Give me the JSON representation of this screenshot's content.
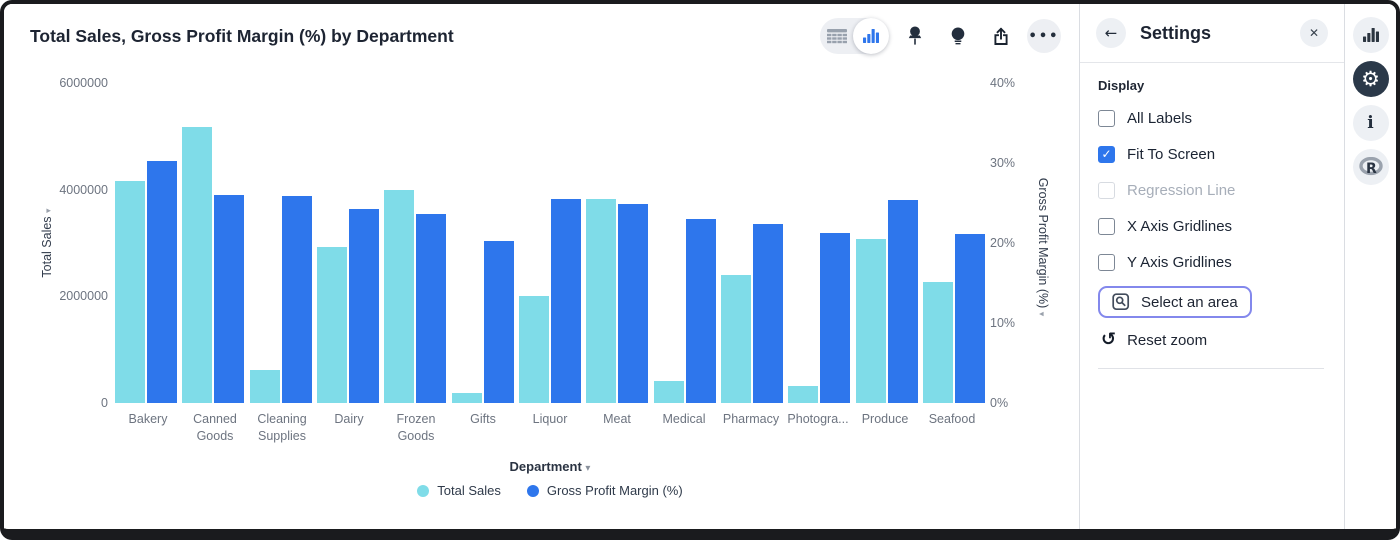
{
  "header": {
    "title": "Total Sales, Gross Profit Margin (%) by Department",
    "toolbar": [
      {
        "name": "table-view-icon",
        "active": false
      },
      {
        "name": "chart-view-icon",
        "active": true
      },
      {
        "name": "pin-icon",
        "active": false
      },
      {
        "name": "lightbulb-icon",
        "active": false
      },
      {
        "name": "share-icon",
        "active": false
      },
      {
        "name": "more-options-icon",
        "active": false
      }
    ]
  },
  "chart_data": {
    "type": "bar",
    "title": "Total Sales, Gross Profit Margin (%) by Department",
    "categories": [
      "Bakery",
      "Canned Goods",
      "Cleaning Supplies",
      "Dairy",
      "Frozen Goods",
      "Gifts",
      "Liquor",
      "Meat",
      "Medical",
      "Pharmacy",
      "Photogra...",
      "Produce",
      "Seafood"
    ],
    "series": [
      {
        "name": "Total Sales",
        "axis": "left",
        "color": "#7FDCE8",
        "values": [
          4160000,
          5180000,
          620000,
          2930000,
          3990000,
          190000,
          2000000,
          3820000,
          420000,
          2410000,
          320000,
          3070000,
          2270000
        ]
      },
      {
        "name": "Gross Profit Margin (%)",
        "axis": "right",
        "color": "#2E76EC",
        "values": [
          30.2,
          26.0,
          25.9,
          24.3,
          23.6,
          20.3,
          25.5,
          24.9,
          23.0,
          22.4,
          21.3,
          25.4,
          21.1
        ]
      }
    ],
    "left_axis": {
      "label": "Total Sales",
      "arrow": "▾",
      "ticks": [
        0,
        2000000,
        4000000,
        6000000
      ],
      "lim": [
        0,
        6000000
      ]
    },
    "right_axis": {
      "label": "Gross Profit Margin (%)",
      "arrow": "▾",
      "ticks": [
        "0%",
        "10%",
        "20%",
        "30%",
        "40%"
      ],
      "lim": [
        0,
        40
      ]
    },
    "xlabel": "Department",
    "xlabel_caret": "▾",
    "legend_position": "bottom",
    "gridlines": false
  },
  "settings": {
    "title": "Settings",
    "back_icon": "←",
    "close_icon": "✕",
    "section_title": "Display",
    "checkboxes": [
      {
        "label": "All Labels",
        "checked": false,
        "disabled": false
      },
      {
        "label": "Fit To Screen",
        "checked": true,
        "disabled": false
      },
      {
        "label": "Regression Line",
        "checked": false,
        "disabled": true
      },
      {
        "label": "X Axis Gridlines",
        "checked": false,
        "disabled": false
      },
      {
        "label": "Y Axis Gridlines",
        "checked": false,
        "disabled": false
      }
    ],
    "actions": [
      {
        "label": "Select an area",
        "icon": "area-select-icon",
        "highlighted": true
      },
      {
        "label": "Reset zoom",
        "icon": "reset-zoom-icon",
        "highlighted": false
      }
    ]
  },
  "right_rail": {
    "icons": [
      {
        "name": "chart-panel-icon",
        "active": false
      },
      {
        "name": "settings-gear-icon",
        "active": true
      },
      {
        "name": "info-icon",
        "active": false
      },
      {
        "name": "r-analytics-icon",
        "active": false
      }
    ]
  },
  "colors": {
    "accent_blue": "#2E76EC",
    "cyan": "#7FDCE8",
    "focus_purple": "#8388EC",
    "active_circle": "#2B3949"
  }
}
